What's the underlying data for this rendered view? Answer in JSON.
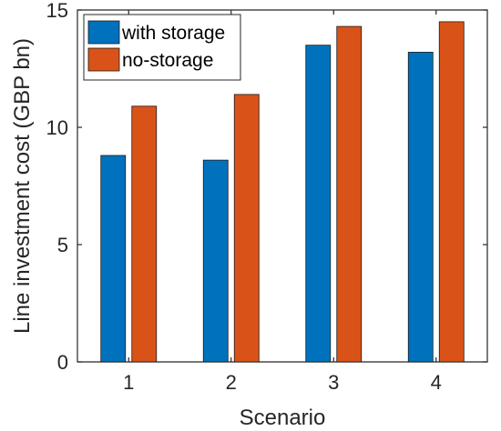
{
  "chart_data": {
    "type": "bar",
    "categories": [
      "1",
      "2",
      "3",
      "4"
    ],
    "series": [
      {
        "name": "with storage",
        "values": [
          8.8,
          8.6,
          13.5,
          13.2
        ],
        "color": "#0072BD"
      },
      {
        "name": "no-storage",
        "values": [
          10.9,
          11.4,
          14.3,
          14.5
        ],
        "color": "#D95319"
      }
    ],
    "title": "",
    "xlabel": "Scenario",
    "ylabel": "Line investment cost (GBP bn)",
    "ylim": [
      0,
      15
    ],
    "yticks": [
      "0",
      "5",
      "10",
      "15"
    ],
    "grid": false,
    "legend_position": "top-left"
  }
}
